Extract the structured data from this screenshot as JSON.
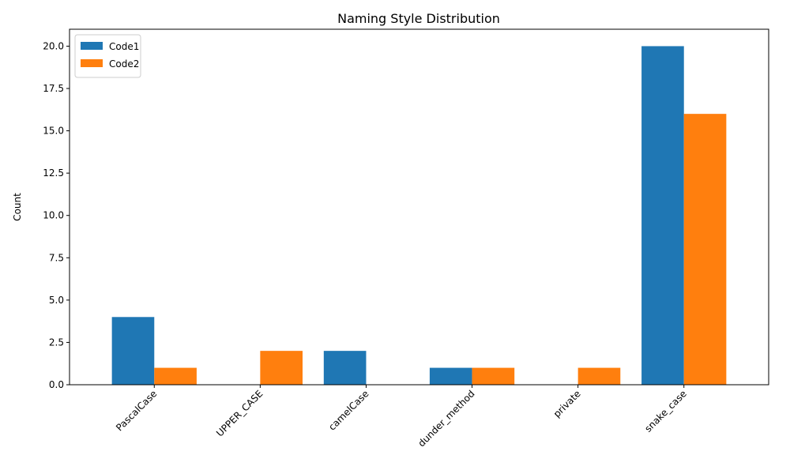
{
  "chart_data": {
    "type": "bar",
    "title": "Naming Style Distribution",
    "xlabel": "",
    "ylabel": "Count",
    "categories": [
      "PascalCase",
      "UPPER_CASE",
      "camelCase",
      "dunder_method",
      "private",
      "snake_case"
    ],
    "series": [
      {
        "name": "Code1",
        "color": "#1f77b4",
        "values": [
          4,
          0,
          2,
          1,
          0,
          20
        ]
      },
      {
        "name": "Code2",
        "color": "#ff7f0e",
        "values": [
          1,
          2,
          0,
          1,
          1,
          16
        ]
      }
    ],
    "ylim": [
      0,
      21
    ],
    "yticks": [
      0.0,
      2.5,
      5.0,
      7.5,
      10.0,
      12.5,
      15.0,
      17.5,
      20.0
    ],
    "ytick_labels": [
      "0.0",
      "2.5",
      "5.0",
      "7.5",
      "10.0",
      "12.5",
      "15.0",
      "17.5",
      "20.0"
    ],
    "grid": false,
    "legend_position": "top-left",
    "xtick_rotation_deg": 45
  }
}
